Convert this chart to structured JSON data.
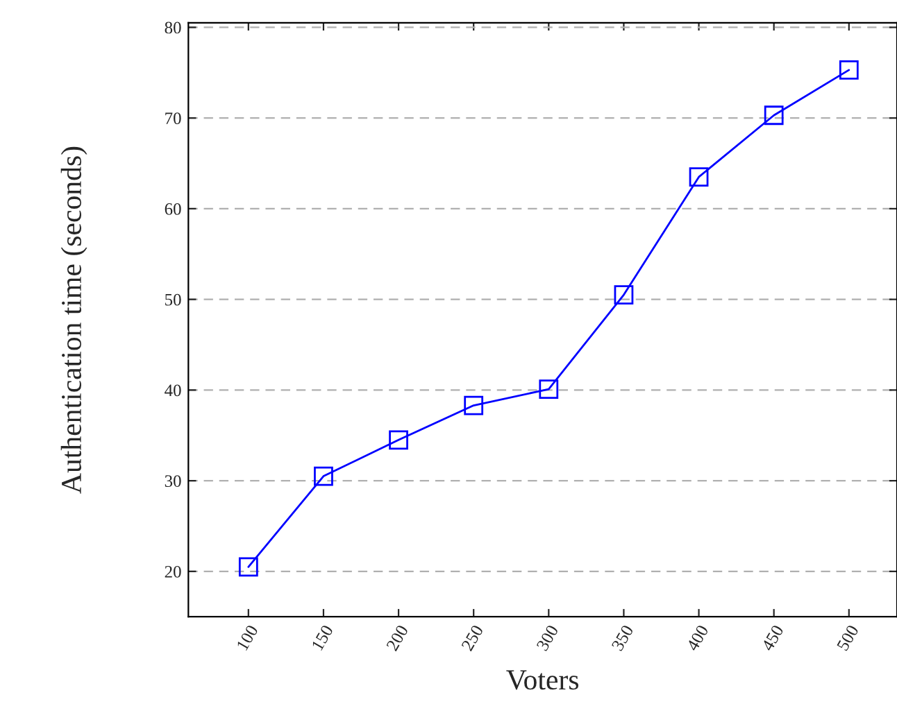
{
  "chart_data": {
    "type": "line",
    "xlabel": "Voters",
    "ylabel": "Authentication time (seconds)",
    "x": [
      100,
      150,
      200,
      250,
      300,
      350,
      400,
      450,
      500
    ],
    "series": [
      {
        "color": "#0000ff",
        "values": [
          20.5,
          30.5,
          34.5,
          38.3,
          40.1,
          50.5,
          63.5,
          70.3,
          75.3
        ]
      }
    ],
    "xlim": [
      60,
      532
    ],
    "xticks": [
      100,
      150,
      200,
      250,
      300,
      350,
      400,
      450,
      500
    ],
    "ylim": [
      15,
      80.5
    ],
    "yticks": [
      20,
      30,
      40,
      50,
      60,
      70,
      80
    ],
    "grid": "y",
    "marker": "square",
    "line_style": "solid",
    "legend": false
  }
}
